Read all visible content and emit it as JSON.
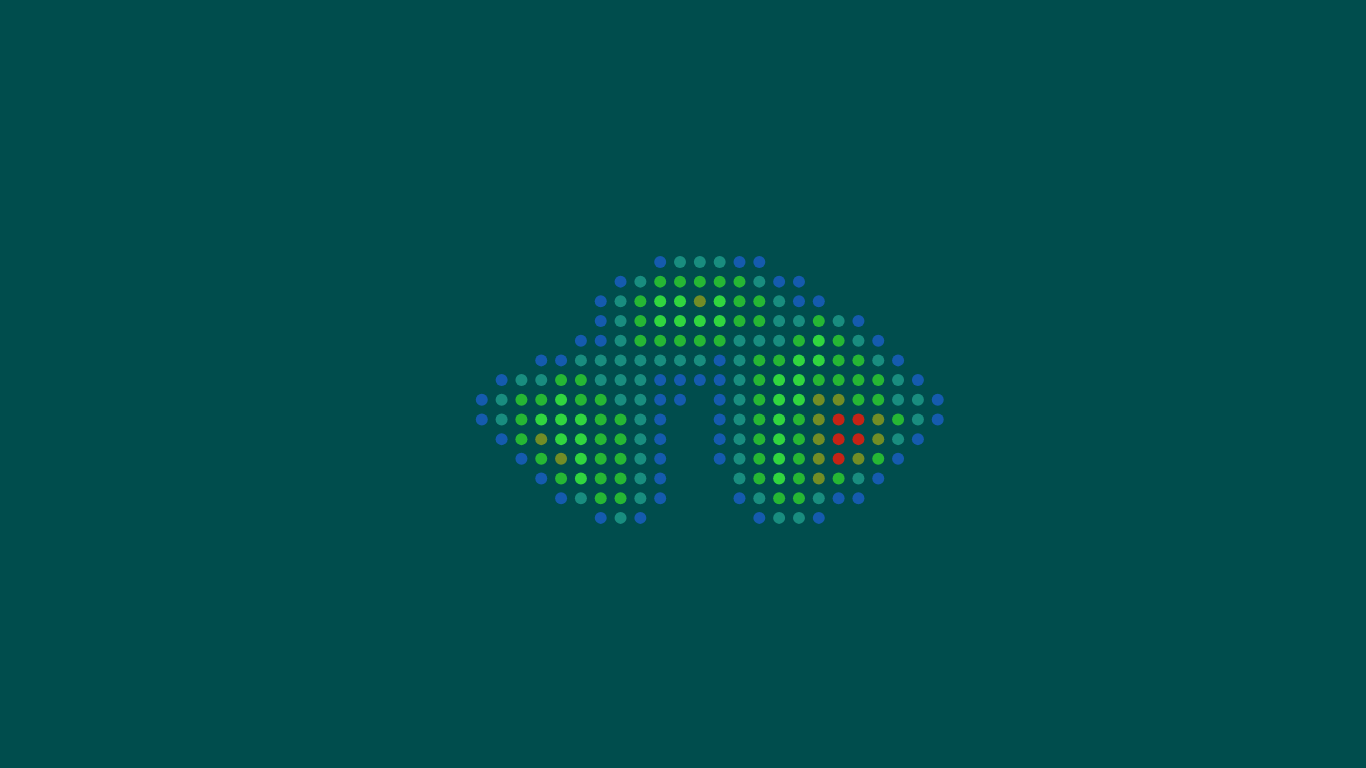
{
  "chart_data": {
    "type": "scatter",
    "xlim": [
      0,
      1366
    ],
    "xticks": [
      0,
      1366
    ],
    "ylim": [
      0,
      768
    ],
    "yticks": [
      0,
      768
    ],
    "grid": false,
    "tick_labels": false,
    "marker": "circle",
    "series": [
      {
        "color": "#1a5fc4",
        "x": [
          660,
          740,
          760,
          620,
          780,
          800,
          600,
          800,
          820,
          600,
          860,
          580,
          600,
          880,
          540,
          560,
          720,
          900,
          500,
          660,
          680,
          700,
          720,
          920,
          480,
          660,
          680,
          720,
          940,
          480,
          660,
          720,
          940,
          500,
          660,
          720,
          920,
          520,
          660,
          720,
          900,
          540,
          660,
          880,
          560,
          660,
          740,
          840,
          860,
          600,
          640,
          760,
          820
        ],
        "y": [
          508,
          508,
          508,
          488,
          488,
          488,
          468,
          468,
          468,
          448,
          448,
          428,
          428,
          428,
          408,
          408,
          408,
          408,
          388,
          388,
          388,
          388,
          388,
          388,
          368,
          368,
          368,
          368,
          368,
          348,
          348,
          348,
          348,
          328,
          328,
          328,
          328,
          308,
          308,
          308,
          308,
          288,
          288,
          288,
          268,
          268,
          268,
          268,
          268,
          248,
          248,
          248,
          248
        ]
      },
      {
        "color": "#1f9c8a",
        "x": [
          680,
          700,
          720,
          640,
          760,
          620,
          780,
          620,
          780,
          800,
          840,
          620,
          740,
          760,
          780,
          860,
          580,
          600,
          620,
          640,
          660,
          680,
          700,
          740,
          880,
          520,
          540,
          600,
          620,
          640,
          740,
          900,
          500,
          620,
          640,
          740,
          900,
          920,
          500,
          640,
          740,
          920,
          640,
          740,
          900,
          640,
          740,
          640,
          740,
          860,
          580,
          640,
          760,
          820,
          620,
          780,
          800
        ],
        "y": [
          508,
          508,
          508,
          488,
          488,
          468,
          468,
          448,
          448,
          448,
          448,
          428,
          428,
          428,
          428,
          428,
          408,
          408,
          408,
          408,
          408,
          408,
          408,
          408,
          408,
          388,
          388,
          388,
          388,
          388,
          388,
          388,
          368,
          368,
          368,
          368,
          368,
          368,
          348,
          348,
          348,
          348,
          328,
          328,
          328,
          308,
          308,
          288,
          288,
          288,
          268,
          268,
          268,
          268,
          248,
          248,
          248
        ]
      },
      {
        "color": "#2ecf2e",
        "x": [
          660,
          680,
          700,
          720,
          740,
          640,
          740,
          760,
          640,
          740,
          760,
          820,
          640,
          660,
          680,
          700,
          720,
          800,
          840,
          760,
          780,
          840,
          860,
          560,
          580,
          760,
          820,
          840,
          860,
          880,
          520,
          540,
          580,
          600,
          760,
          860,
          880,
          520,
          600,
          620,
          760,
          800,
          900,
          520,
          600,
          620,
          760,
          800,
          540,
          600,
          620,
          760,
          800,
          880,
          560,
          600,
          620,
          760,
          800,
          840,
          600,
          620,
          780,
          800
        ],
        "y": [
          488,
          488,
          488,
          488,
          488,
          468,
          468,
          468,
          448,
          448,
          448,
          448,
          428,
          428,
          428,
          428,
          428,
          428,
          428,
          408,
          408,
          408,
          408,
          388,
          388,
          388,
          388,
          388,
          388,
          388,
          368,
          368,
          368,
          368,
          368,
          368,
          368,
          348,
          348,
          348,
          348,
          348,
          348,
          328,
          328,
          328,
          328,
          328,
          308,
          308,
          308,
          308,
          308,
          308,
          288,
          288,
          288,
          288,
          288,
          288,
          268,
          268,
          268,
          268
        ]
      },
      {
        "color": "#3cf53c",
        "x": [
          660,
          680,
          720,
          660,
          680,
          700,
          720,
          820,
          800,
          820,
          780,
          800,
          560,
          780,
          800,
          540,
          560,
          580,
          780,
          560,
          580,
          780,
          580,
          780,
          580,
          780
        ],
        "y": [
          468,
          468,
          468,
          448,
          448,
          448,
          448,
          428,
          408,
          408,
          388,
          388,
          368,
          368,
          368,
          348,
          348,
          348,
          348,
          328,
          328,
          328,
          308,
          308,
          288,
          288
        ]
      },
      {
        "color": "#8a9c1e",
        "x": [
          700,
          820,
          840,
          820,
          880,
          540,
          820,
          880,
          560,
          820,
          860,
          820
        ],
        "y": [
          468,
          368,
          368,
          348,
          348,
          328,
          328,
          328,
          308,
          308,
          308,
          288
        ]
      },
      {
        "color": "#f01a0a",
        "x": [
          840,
          860,
          840,
          860,
          840
        ],
        "y": [
          348,
          348,
          328,
          328,
          308
        ]
      }
    ]
  }
}
